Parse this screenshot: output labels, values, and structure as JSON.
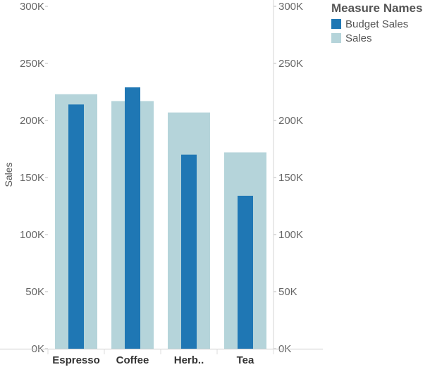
{
  "chart_data": {
    "type": "bar",
    "categories": [
      "Espresso",
      "Coffee",
      "Herb..",
      "Tea"
    ],
    "series": [
      {
        "name": "Sales",
        "color": "#b5d4da",
        "values": [
          223000,
          217000,
          207000,
          172000
        ]
      },
      {
        "name": "Budget Sales",
        "color": "#1f77b4",
        "values": [
          214000,
          229000,
          170000,
          134000
        ]
      }
    ],
    "ylabel": "Sales",
    "ylim": [
      0,
      300000
    ],
    "yticks": [
      "0K",
      "50K",
      "100K",
      "150K",
      "200K",
      "250K",
      "300K"
    ],
    "dual_axis": true,
    "legend": {
      "title": "Measure Names",
      "placement": "top-right",
      "items": [
        {
          "label": "Budget Sales",
          "color": "#1f77b4"
        },
        {
          "label": "Sales",
          "color": "#b5d4da"
        }
      ]
    },
    "grid": false
  }
}
